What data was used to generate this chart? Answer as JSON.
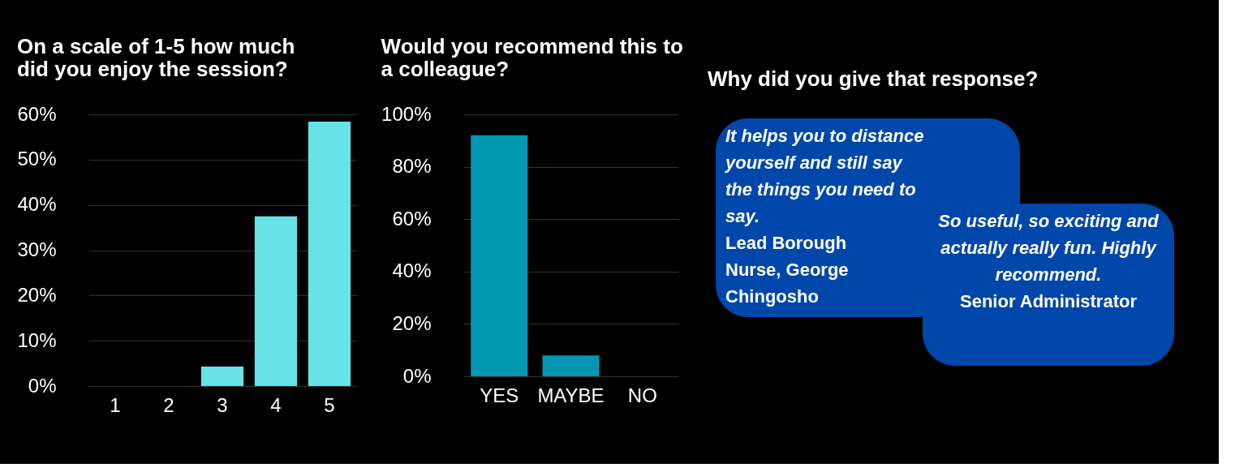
{
  "chart_data": [
    {
      "type": "bar",
      "title": "On a scale of 1-5 how much did you enjoy the session?",
      "categories": [
        "1",
        "2",
        "3",
        "4",
        "5"
      ],
      "values": [
        0,
        0,
        4.3,
        37.5,
        58.4
      ],
      "color": "#67e3e8",
      "ylim": [
        0,
        60
      ],
      "yticks": [
        {
          "value": 0,
          "label": "0%"
        },
        {
          "value": 10,
          "label": "10%"
        },
        {
          "value": 20,
          "label": "20%"
        },
        {
          "value": 30,
          "label": "30%"
        },
        {
          "value": 40,
          "label": "40%"
        },
        {
          "value": 50,
          "label": "50%"
        },
        {
          "value": 60,
          "label": "60%"
        }
      ],
      "grid": "y"
    },
    {
      "type": "bar",
      "title": "Would you recommend this to a colleague?",
      "categories": [
        "YES",
        "MAYBE",
        "NO"
      ],
      "values": [
        92,
        8,
        0
      ],
      "color": "#0097b2",
      "ylim": [
        0,
        100
      ],
      "yticks": [
        {
          "value": 0,
          "label": "0%"
        },
        {
          "value": 20,
          "label": "20%"
        },
        {
          "value": 40,
          "label": "40%"
        },
        {
          "value": 60,
          "label": "60%"
        },
        {
          "value": 80,
          "label": "80%"
        },
        {
          "value": 100,
          "label": "100%"
        }
      ],
      "grid": "y"
    },
    {
      "type": "other",
      "title": "Why did you give that response?",
      "annotations": [
        "It helps you to distance yourself and still say the things you need to say.",
        "Lead Borough Nurse, George Chingosho",
        "So useful, so exciting and actually really fun. Highly recommend.",
        "Senior Administrator"
      ]
    }
  ]
}
